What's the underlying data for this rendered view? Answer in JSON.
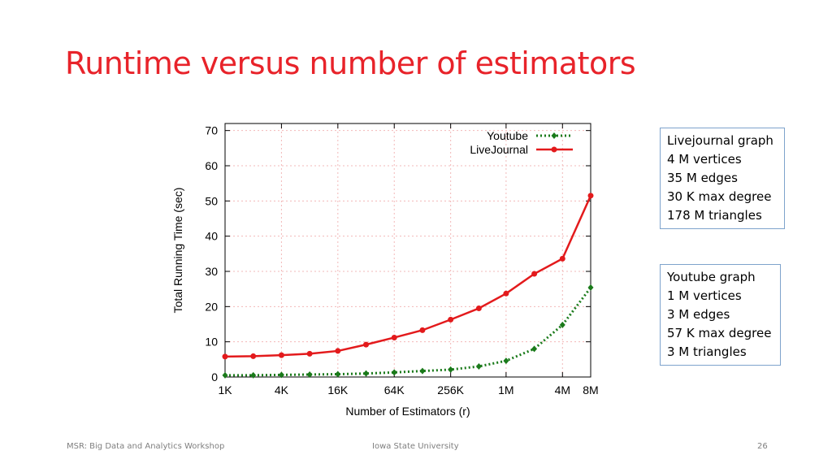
{
  "slide": {
    "title": "Runtime versus number of estimators",
    "footer_left": "MSR: Big Data and Analytics Workshop",
    "footer_center": "Iowa State University",
    "page_number": "26"
  },
  "info_boxes": [
    {
      "id": "livejournal",
      "lines": [
        "Livejournal graph",
        "4 M vertices",
        "35 M edges",
        "30 K max degree",
        "178 M triangles"
      ]
    },
    {
      "id": "youtube",
      "lines": [
        "Youtube graph",
        "1 M vertices",
        "3 M edges",
        "57 K max degree",
        "3 M triangles"
      ]
    }
  ],
  "colors": {
    "title": "#e8232a",
    "youtube": "#1a7a1a",
    "livejournal": "#e31a1c",
    "grid": "#f2b8b8"
  },
  "chart_data": {
    "type": "line",
    "xlabel": "Number of Estimators (r)",
    "ylabel": "Total Running Time (sec)",
    "x_scale": "log2",
    "x_values": [
      1000,
      2000,
      4000,
      8000,
      16000,
      32000,
      64000,
      128000,
      256000,
      512000,
      1000000,
      2000000,
      4000000,
      8000000
    ],
    "x_ticks": [
      {
        "value": 1000,
        "label": "1K"
      },
      {
        "value": 4000,
        "label": "4K"
      },
      {
        "value": 16000,
        "label": "16K"
      },
      {
        "value": 64000,
        "label": "64K"
      },
      {
        "value": 256000,
        "label": "256K"
      },
      {
        "value": 1000000,
        "label": "1M"
      },
      {
        "value": 4000000,
        "label": "4M"
      },
      {
        "value": 8000000,
        "label": "8M"
      }
    ],
    "ylim": [
      0,
      72
    ],
    "y_ticks": [
      0,
      10,
      20,
      30,
      40,
      50,
      60,
      70
    ],
    "grid": true,
    "legend_position": "top-right",
    "series": [
      {
        "name": "Youtube",
        "style": "dotted",
        "marker": "diamond",
        "values": [
          0.5,
          0.5,
          0.6,
          0.7,
          0.8,
          1.0,
          1.3,
          1.7,
          2.1,
          3.0,
          4.6,
          8.0,
          14.8,
          25.4
        ]
      },
      {
        "name": "LiveJournal",
        "style": "solid",
        "marker": "circle",
        "values": [
          5.8,
          5.9,
          6.2,
          6.6,
          7.4,
          9.2,
          11.2,
          13.3,
          16.3,
          19.5,
          23.7,
          29.3,
          33.6,
          51.5
        ]
      }
    ]
  }
}
